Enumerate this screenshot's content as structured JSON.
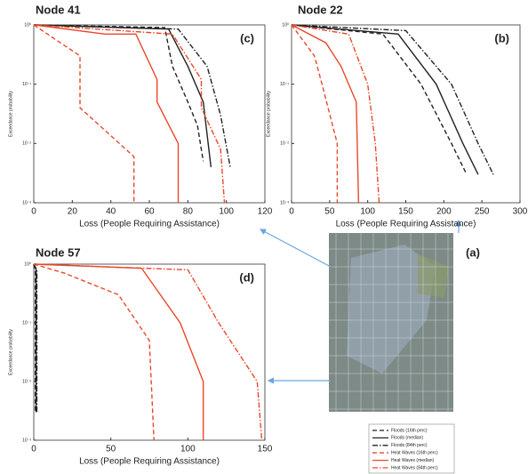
{
  "chart_data": [
    {
      "type": "line",
      "title": "Node 41",
      "panel_label": "(c)",
      "xlabel": "Loss (People Requiring Assistance)",
      "ylabel": "Exceedance probability",
      "xlim": [
        0,
        120
      ],
      "xticks": [
        0,
        20,
        40,
        60,
        80,
        100,
        120
      ],
      "ylim": [
        0.001,
        1
      ],
      "ylog": true,
      "yticks": [
        {
          "value": 1,
          "label": "10⁰"
        },
        {
          "value": 0.1,
          "label": "10⁻¹"
        },
        {
          "value": 0.01,
          "label": "10⁻²"
        },
        {
          "value": 0.001,
          "label": "10⁻³"
        }
      ],
      "series": [
        {
          "name": "Floods (16th perc)",
          "color": "#222222",
          "dash": "dashed",
          "x": [
            0,
            68,
            72,
            80,
            85,
            88
          ],
          "values": [
            1,
            0.9,
            0.2,
            0.05,
            0.02,
            0.005
          ]
        },
        {
          "name": "Floods (median)",
          "color": "#222222",
          "dash": "solid",
          "x": [
            0,
            70,
            80,
            88,
            92
          ],
          "values": [
            1,
            0.85,
            0.2,
            0.05,
            0.004
          ]
        },
        {
          "name": "Floods (84th perc)",
          "color": "#222222",
          "dash": "dashdot",
          "x": [
            0,
            75,
            90,
            97,
            102
          ],
          "values": [
            1,
            0.85,
            0.2,
            0.03,
            0.004
          ]
        },
        {
          "name": "Heat Waves (16th perc)",
          "color": "#e8482a",
          "dash": "dashed",
          "x": [
            0,
            24,
            24,
            52,
            52
          ],
          "values": [
            1,
            0.3,
            0.04,
            0.006,
            0.001
          ]
        },
        {
          "name": "Heat Waves (median)",
          "color": "#e8482a",
          "dash": "solid",
          "x": [
            0,
            37,
            53,
            64,
            64,
            75,
            75
          ],
          "values": [
            1,
            0.7,
            0.7,
            0.12,
            0.05,
            0.01,
            0.001
          ]
        },
        {
          "name": "Heat Waves (84th perc)",
          "color": "#e8482a",
          "dash": "dashdot",
          "x": [
            0,
            72,
            87,
            87,
            97,
            99
          ],
          "values": [
            1,
            0.7,
            0.12,
            0.04,
            0.008,
            0.001
          ]
        }
      ]
    },
    {
      "type": "line",
      "title": "Node 22",
      "panel_label": "(b)",
      "xlabel": "Loss (People Requiring Assistance)",
      "ylabel": "Exceedance probability",
      "xlim": [
        0,
        300
      ],
      "xticks": [
        0,
        50,
        100,
        150,
        200,
        250,
        300
      ],
      "ylim": [
        0.001,
        1
      ],
      "ylog": true,
      "yticks": [
        {
          "value": 1,
          "label": "10⁰"
        },
        {
          "value": 0.1,
          "label": "10⁻¹"
        },
        {
          "value": 0.01,
          "label": "10⁻²"
        },
        {
          "value": 0.001,
          "label": "10⁻³"
        }
      ],
      "series": [
        {
          "name": "Floods (16th perc)",
          "color": "#222222",
          "dash": "dashed",
          "x": [
            0,
            120,
            170,
            210,
            230
          ],
          "values": [
            1,
            0.7,
            0.1,
            0.01,
            0.003
          ]
        },
        {
          "name": "Floods (median)",
          "color": "#222222",
          "dash": "solid",
          "x": [
            0,
            140,
            190,
            225,
            245
          ],
          "values": [
            1,
            0.7,
            0.1,
            0.01,
            0.003
          ]
        },
        {
          "name": "Floods (84th perc)",
          "color": "#222222",
          "dash": "dashdot",
          "x": [
            0,
            150,
            210,
            245,
            265
          ],
          "values": [
            1,
            0.8,
            0.1,
            0.01,
            0.003
          ]
        },
        {
          "name": "Heat Waves (16th perc)",
          "color": "#e8482a",
          "dash": "dashed",
          "x": [
            0,
            30,
            40,
            60,
            60
          ],
          "values": [
            1,
            0.3,
            0.1,
            0.01,
            0.001
          ]
        },
        {
          "name": "Heat Waves (median)",
          "color": "#e8482a",
          "dash": "solid",
          "x": [
            0,
            45,
            65,
            85,
            88
          ],
          "values": [
            1,
            0.5,
            0.2,
            0.05,
            0.001
          ]
        },
        {
          "name": "Heat Waves (84th perc)",
          "color": "#e8482a",
          "dash": "dashdot",
          "x": [
            0,
            75,
            100,
            110,
            115
          ],
          "values": [
            1,
            0.7,
            0.1,
            0.01,
            0.001
          ]
        }
      ]
    },
    {
      "type": "line",
      "title": "Node 57",
      "panel_label": "(d)",
      "xlabel": "Loss (People Requiring Assistance)",
      "ylabel": "Exceedance probability",
      "xlim": [
        0,
        150
      ],
      "xticks": [
        0,
        50,
        100,
        150
      ],
      "ylim": [
        0.001,
        1
      ],
      "ylog": true,
      "yticks": [
        {
          "value": 1,
          "label": "10⁰"
        },
        {
          "value": 0.1,
          "label": "10⁻¹"
        },
        {
          "value": 0.01,
          "label": "10⁻²"
        },
        {
          "value": 0.001,
          "label": "10⁻³"
        }
      ],
      "series": [
        {
          "name": "Floods (16th perc)",
          "color": "#222222",
          "dash": "dashed",
          "x": [
            0,
            1,
            1
          ],
          "values": [
            1,
            0.8,
            0.003
          ]
        },
        {
          "name": "Floods (median)",
          "color": "#222222",
          "dash": "solid",
          "x": [
            0,
            1.5,
            1.5
          ],
          "values": [
            1,
            0.8,
            0.003
          ]
        },
        {
          "name": "Floods (84th perc)",
          "color": "#222222",
          "dash": "dashdot",
          "x": [
            0,
            2,
            2
          ],
          "values": [
            1,
            0.8,
            0.003
          ]
        },
        {
          "name": "Heat Waves (16th perc)",
          "color": "#e8482a",
          "dash": "dashed",
          "x": [
            0,
            20,
            55,
            75,
            78
          ],
          "values": [
            1,
            0.7,
            0.3,
            0.05,
            0.001
          ]
        },
        {
          "name": "Heat Waves (median)",
          "color": "#e8482a",
          "dash": "solid",
          "x": [
            0,
            70,
            95,
            110,
            110
          ],
          "values": [
            1,
            0.85,
            0.1,
            0.01,
            0.001
          ]
        },
        {
          "name": "Heat Waves (84th perc)",
          "color": "#e8482a",
          "dash": "dashdot",
          "x": [
            0,
            100,
            120,
            145,
            148
          ],
          "values": [
            1,
            0.8,
            0.1,
            0.01,
            0.001
          ]
        }
      ]
    }
  ],
  "map": {
    "label": "(a)"
  }
}
